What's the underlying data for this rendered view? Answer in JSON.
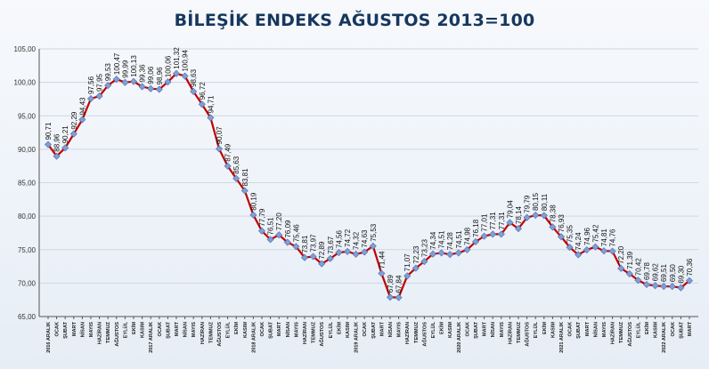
{
  "chart_data": {
    "type": "line",
    "title": "BİLEŞİK ENDEKS AĞUSTOS 2013=100",
    "xlabel": "",
    "ylabel": "",
    "ylim": [
      65,
      105
    ],
    "y_ticks": [
      "65,00",
      "70,00",
      "75,00",
      "80,00",
      "85,00",
      "90,00",
      "95,00",
      "100,00",
      "105,00"
    ],
    "grid": true,
    "legend": "none",
    "colors": {
      "line": "#c00000",
      "marker": "#7f9fd6",
      "marker_edge": "#4f6fa8",
      "title": "#17375e",
      "grid": "#d0d7e2",
      "axis": "#555555"
    },
    "categories": [
      "2016 ARALIK",
      "OCAK",
      "ŞUBAT",
      "MART",
      "NİSAN",
      "MAYIS",
      "HAZİRAN",
      "TEMMUZ",
      "AĞUSTOS",
      "EYLÜL",
      "EKİM",
      "KASIM",
      "2017 ARALIK",
      "OCAK",
      "ŞUBAT",
      "MART",
      "NİSAN",
      "MAYIS",
      "HAZİRAN",
      "TEMMUZ",
      "AĞUSTOS",
      "EYLÜL",
      "EKİM",
      "KASIM",
      "2018 ARALIK",
      "OCAK",
      "ŞUBAT",
      "MART",
      "NİSAN",
      "MAYIS",
      "HAZİRAN",
      "TEMMUZ",
      "AĞUSTOS",
      "EYLÜL",
      "EKİM",
      "KASIM",
      "2019 ARALIK",
      "OCAK",
      "ŞUBAT",
      "MART",
      "NİSAN",
      "MAYIS",
      "HAZİRAN",
      "TEMMUZ",
      "AĞUSTOS",
      "EYLÜL",
      "EKİM",
      "KASIM",
      "2020 ARALIK",
      "OCAK",
      "ŞUBAT",
      "MART",
      "NİSAN",
      "MAYIS",
      "HAZİRAN",
      "TEMMUZ",
      "AĞUSTOS",
      "EYLÜL",
      "EKİM",
      "KASIM",
      "2021 ARALIK",
      "OCAK",
      "ŞUBAT",
      "MART",
      "NİSAN",
      "MAYIS",
      "HAZİRAN",
      "TEMMUZ",
      "AĞUSTOS",
      "EYLÜL",
      "EKİM",
      "KASIM",
      "2022 ARALIK",
      "OCAK",
      "ŞUBAT",
      "MART"
    ],
    "series": [
      {
        "values": [
          90.71,
          88.96,
          90.21,
          92.29,
          94.43,
          97.56,
          97.95,
          99.53,
          100.47,
          99.99,
          100.13,
          99.36,
          99.06,
          98.96,
          100.06,
          101.32,
          100.94,
          98.63,
          96.72,
          94.71,
          90.07,
          87.49,
          85.63,
          83.81,
          80.19,
          77.79,
          76.51,
          77.2,
          76.09,
          75.46,
          73.81,
          73.97,
          72.89,
          73.67,
          74.56,
          74.72,
          74.32,
          74.63,
          75.53,
          71.44,
          67.89,
          67.84,
          71.07,
          72.23,
          73.23,
          74.34,
          74.51,
          74.28,
          74.51,
          74.98,
          76.18,
          77.01,
          77.31,
          77.31,
          79.04,
          78.14,
          79.79,
          80.15,
          80.11,
          78.38,
          76.93,
          75.35,
          74.24,
          74.96,
          75.42,
          74.81,
          74.76,
          72.2,
          71.39,
          70.42,
          69.78,
          69.62,
          69.51,
          69.5,
          69.3,
          70.36
        ],
        "labels": [
          "90,71",
          "88,96",
          "90,21",
          "92,29",
          "94,43",
          "97,56",
          "97,95",
          "99,53",
          "100,47",
          "99,99",
          "100,13",
          "99,36",
          "99,06",
          "98,96",
          "100,06",
          "101,32",
          "100,94",
          "98,63",
          "96,72",
          "94,71",
          "90,07",
          "87,49",
          "85,63",
          "83,81",
          "80,19",
          "77,79",
          "76,51",
          "77,20",
          "76,09",
          "75,46",
          "73,81",
          "73,97",
          "72,89",
          "73,67",
          "74,56",
          "74,72",
          "74,32",
          "74,63",
          "75,53",
          "71,44",
          "67,89",
          "67,84",
          "71,07",
          "72,23",
          "73,23",
          "74,34",
          "74,51",
          "74,28",
          "74,51",
          "74,98",
          "76,18",
          "77,01",
          "77,31",
          "77,31",
          "79,04",
          "78,14",
          "79,79",
          "80,15",
          "80,11",
          "78,38",
          "76,93",
          "75,35",
          "74,24",
          "74,96",
          "75,42",
          "74,81",
          "74,76",
          "72,20",
          "71,39",
          "70,42",
          "69,78",
          "69,62",
          "69,51",
          "69,50",
          "69,30",
          "70,36"
        ]
      }
    ]
  }
}
